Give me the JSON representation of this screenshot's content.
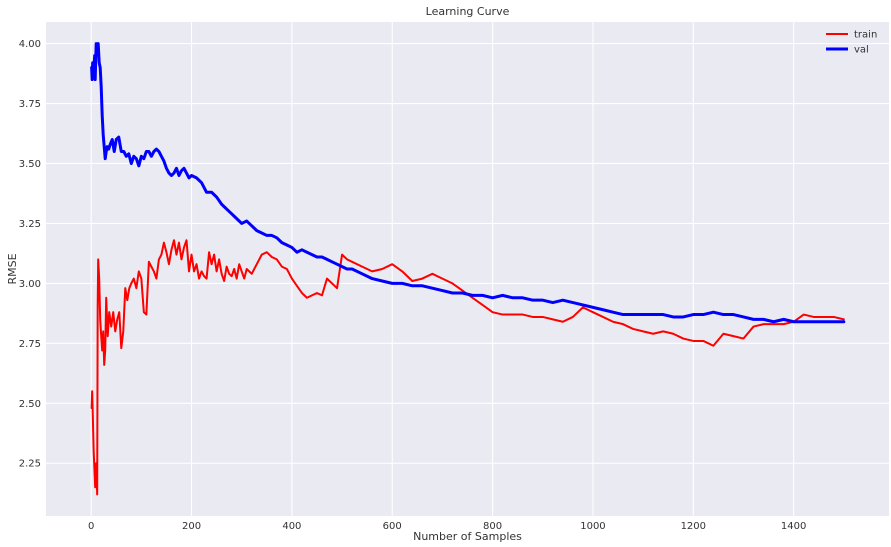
{
  "chart_data": {
    "type": "line",
    "title": "Learning Curve",
    "xlabel": "Number of Samples",
    "ylabel": "RMSE",
    "xlim": [
      -90,
      1590
    ],
    "ylim": [
      2.03,
      4.09
    ],
    "xticks": [
      0,
      200,
      400,
      600,
      800,
      1000,
      1200,
      1400
    ],
    "yticks": [
      2.25,
      2.5,
      2.75,
      3.0,
      3.25,
      3.5,
      3.75,
      4.0
    ],
    "ytick_labels": [
      "2.25",
      "2.50",
      "2.75",
      "3.00",
      "3.25",
      "3.50",
      "3.75",
      "4.00"
    ],
    "grid": true,
    "background": "#eaeaf2",
    "legend": "top-right",
    "series": [
      {
        "name": "train",
        "color": "#ff0000",
        "width": 2,
        "x": [
          1,
          2,
          3,
          5,
          8,
          10,
          12,
          13,
          14,
          16,
          18,
          20,
          22,
          24,
          26,
          28,
          30,
          33,
          36,
          40,
          44,
          48,
          52,
          56,
          60,
          64,
          68,
          72,
          76,
          80,
          85,
          90,
          95,
          100,
          105,
          110,
          115,
          120,
          125,
          130,
          135,
          140,
          145,
          150,
          155,
          160,
          165,
          170,
          175,
          180,
          185,
          190,
          195,
          200,
          205,
          210,
          215,
          220,
          225,
          230,
          235,
          240,
          245,
          250,
          255,
          260,
          265,
          270,
          275,
          280,
          285,
          290,
          295,
          300,
          305,
          310,
          320,
          330,
          340,
          350,
          360,
          370,
          380,
          390,
          400,
          410,
          420,
          430,
          440,
          450,
          460,
          470,
          480,
          490,
          500,
          510,
          520,
          540,
          560,
          580,
          600,
          620,
          640,
          660,
          680,
          700,
          720,
          740,
          760,
          780,
          800,
          820,
          840,
          860,
          880,
          900,
          920,
          940,
          960,
          980,
          1000,
          1020,
          1040,
          1060,
          1080,
          1100,
          1120,
          1140,
          1160,
          1180,
          1200,
          1220,
          1240,
          1260,
          1280,
          1300,
          1320,
          1340,
          1360,
          1380,
          1400,
          1420,
          1440,
          1460,
          1480,
          1500
        ],
        "y": [
          2.48,
          2.55,
          2.47,
          2.3,
          2.15,
          2.25,
          2.12,
          2.9,
          3.1,
          3.02,
          2.85,
          2.78,
          2.72,
          2.8,
          2.66,
          2.72,
          2.94,
          2.78,
          2.88,
          2.82,
          2.88,
          2.8,
          2.85,
          2.88,
          2.73,
          2.8,
          2.98,
          2.93,
          2.98,
          3.0,
          3.02,
          2.98,
          3.05,
          3.02,
          2.88,
          2.87,
          3.09,
          3.07,
          3.05,
          3.02,
          3.1,
          3.12,
          3.17,
          3.13,
          3.08,
          3.14,
          3.18,
          3.12,
          3.17,
          3.1,
          3.15,
          3.18,
          3.05,
          3.12,
          3.05,
          3.08,
          3.02,
          3.05,
          3.03,
          3.02,
          3.13,
          3.08,
          3.12,
          3.05,
          3.1,
          3.04,
          3.01,
          3.07,
          3.04,
          3.03,
          3.06,
          3.02,
          3.08,
          3.05,
          3.02,
          3.06,
          3.04,
          3.08,
          3.12,
          3.13,
          3.11,
          3.1,
          3.07,
          3.06,
          3.02,
          2.99,
          2.96,
          2.94,
          2.95,
          2.96,
          2.95,
          3.02,
          3.0,
          2.98,
          3.12,
          3.1,
          3.09,
          3.07,
          3.05,
          3.06,
          3.08,
          3.05,
          3.01,
          3.02,
          3.04,
          3.02,
          3.0,
          2.97,
          2.94,
          2.91,
          2.88,
          2.87,
          2.87,
          2.87,
          2.86,
          2.86,
          2.85,
          2.84,
          2.86,
          2.9,
          2.88,
          2.86,
          2.84,
          2.83,
          2.81,
          2.8,
          2.79,
          2.8,
          2.79,
          2.77,
          2.76,
          2.76,
          2.74,
          2.79,
          2.78,
          2.77,
          2.82,
          2.83,
          2.83,
          2.83,
          2.84,
          2.87,
          2.86,
          2.86,
          2.86,
          2.85
        ]
      },
      {
        "name": "val",
        "color": "#0000ff",
        "width": 3,
        "x": [
          1,
          2,
          3,
          5,
          7,
          8,
          10,
          12,
          14,
          16,
          18,
          20,
          22,
          24,
          26,
          28,
          30,
          32,
          35,
          38,
          42,
          46,
          50,
          55,
          60,
          65,
          70,
          75,
          80,
          85,
          90,
          95,
          100,
          105,
          110,
          115,
          120,
          125,
          130,
          135,
          140,
          145,
          150,
          155,
          160,
          165,
          170,
          175,
          180,
          185,
          190,
          195,
          200,
          210,
          220,
          230,
          240,
          250,
          260,
          270,
          280,
          290,
          300,
          310,
          320,
          330,
          340,
          350,
          360,
          370,
          380,
          390,
          400,
          410,
          420,
          430,
          440,
          450,
          460,
          470,
          480,
          490,
          500,
          510,
          520,
          540,
          560,
          580,
          600,
          620,
          640,
          660,
          680,
          700,
          720,
          740,
          760,
          780,
          800,
          820,
          840,
          860,
          880,
          900,
          920,
          940,
          960,
          980,
          1000,
          1020,
          1040,
          1060,
          1080,
          1100,
          1120,
          1140,
          1160,
          1180,
          1200,
          1220,
          1240,
          1260,
          1280,
          1300,
          1320,
          1340,
          1360,
          1380,
          1400,
          1420,
          1440,
          1460,
          1480,
          1500
        ],
        "y": [
          3.9,
          3.85,
          3.92,
          3.88,
          3.95,
          3.85,
          4.0,
          3.98,
          4.0,
          3.92,
          3.9,
          3.82,
          3.7,
          3.62,
          3.57,
          3.52,
          3.55,
          3.57,
          3.56,
          3.58,
          3.6,
          3.55,
          3.6,
          3.61,
          3.55,
          3.55,
          3.53,
          3.54,
          3.5,
          3.53,
          3.52,
          3.49,
          3.53,
          3.52,
          3.55,
          3.55,
          3.53,
          3.55,
          3.56,
          3.55,
          3.53,
          3.51,
          3.48,
          3.46,
          3.45,
          3.46,
          3.48,
          3.45,
          3.47,
          3.48,
          3.46,
          3.44,
          3.45,
          3.44,
          3.42,
          3.38,
          3.38,
          3.36,
          3.33,
          3.31,
          3.29,
          3.27,
          3.25,
          3.26,
          3.24,
          3.22,
          3.21,
          3.2,
          3.2,
          3.19,
          3.17,
          3.16,
          3.15,
          3.13,
          3.14,
          3.13,
          3.12,
          3.11,
          3.11,
          3.1,
          3.09,
          3.08,
          3.07,
          3.06,
          3.06,
          3.04,
          3.02,
          3.01,
          3.0,
          3.0,
          2.99,
          2.99,
          2.98,
          2.97,
          2.96,
          2.96,
          2.95,
          2.95,
          2.94,
          2.95,
          2.94,
          2.94,
          2.93,
          2.93,
          2.92,
          2.93,
          2.92,
          2.91,
          2.9,
          2.89,
          2.88,
          2.87,
          2.87,
          2.87,
          2.87,
          2.87,
          2.86,
          2.86,
          2.87,
          2.87,
          2.88,
          2.87,
          2.87,
          2.86,
          2.85,
          2.85,
          2.84,
          2.85,
          2.84,
          2.84,
          2.84,
          2.84,
          2.84,
          2.84
        ]
      }
    ]
  }
}
